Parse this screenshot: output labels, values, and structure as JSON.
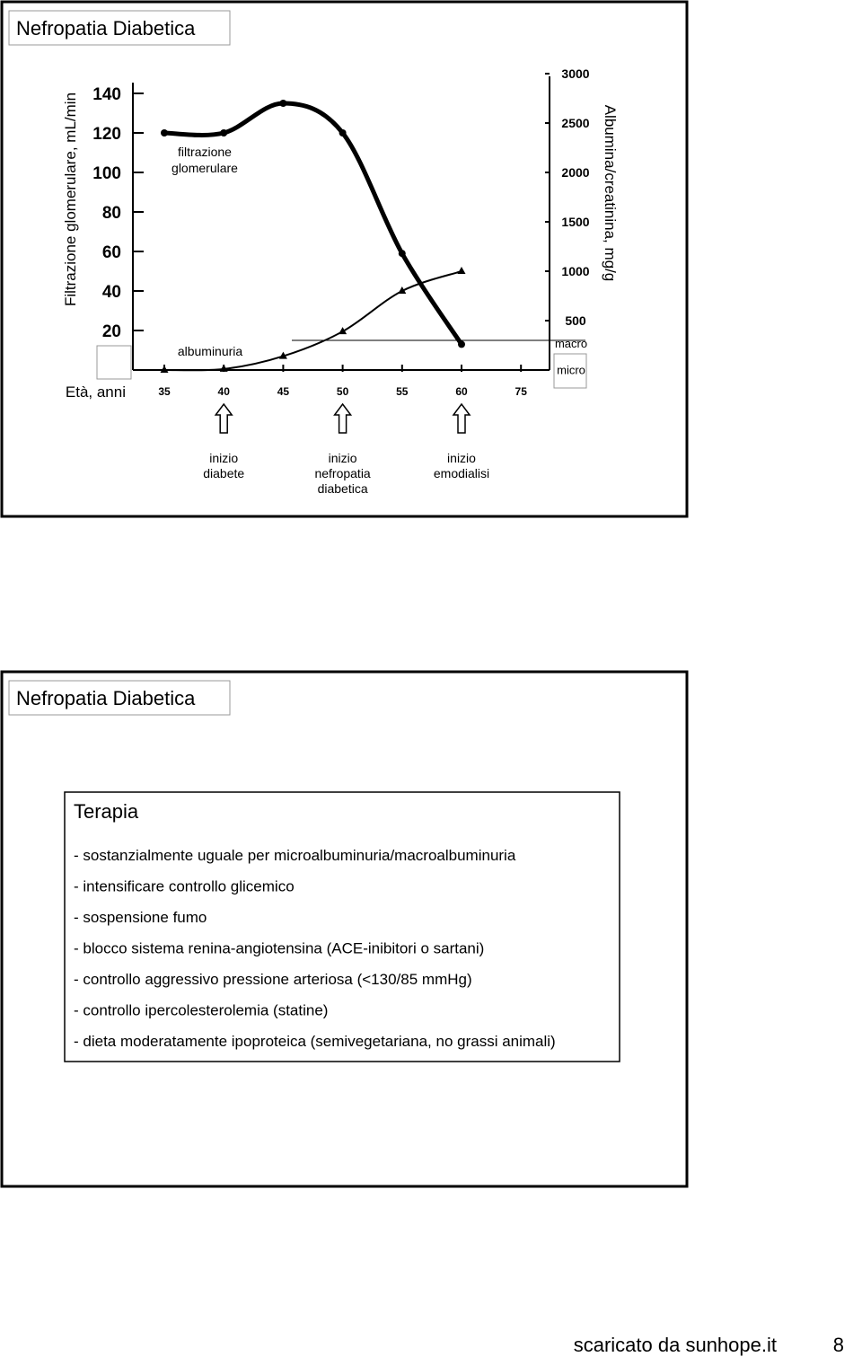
{
  "slides": [
    {
      "title": "Nefropatia Diabetica",
      "chart": {
        "type": "line",
        "categories": [
          "35",
          "40",
          "45",
          "50",
          "55",
          "60",
          "75"
        ],
        "x_label": "Età, anni",
        "y_label": "Filtrazione glomerulare, mL/min",
        "y2_label": "Albumina/creatinina, mg/g",
        "ylim": [
          0,
          150
        ],
        "yticks": [
          20,
          40,
          60,
          80,
          100,
          120,
          140
        ],
        "y2lim": [
          0,
          3000
        ],
        "y2ticks": [
          500,
          1000,
          1500,
          2000,
          2500,
          3000
        ],
        "series": [
          {
            "name": "filtrazione glomerulare",
            "color": "#000000",
            "marker": "circle",
            "values": [
              120,
              120,
              135,
              120,
              59,
              13,
              null
            ]
          },
          {
            "name": "albuminuria",
            "axis": "y2",
            "color": "#000000",
            "marker": "triangle",
            "values": [
              0,
              10,
              140,
              390,
              800,
              1000,
              null
            ]
          }
        ],
        "thresholds": [
          {
            "label": "macro",
            "value": 300
          },
          {
            "label": "micro",
            "value": 30
          }
        ],
        "events": [
          {
            "label": [
              "inizio",
              "diabete"
            ]
          },
          {
            "label": [
              "inizio",
              "nefropatia",
              "diabetica"
            ]
          },
          {
            "label": [
              "inizio",
              "emodialisi"
            ]
          }
        ]
      }
    },
    {
      "title": "Nefropatia Diabetica",
      "heading": "Terapia",
      "items": [
        "- sostanzialmente uguale per microalbuminuria/macroalbuminuria",
        "- intensificare controllo glicemico",
        "- sospensione fumo",
        "- blocco sistema renina-angiotensina (ACE-inibitori o sartani)",
        "- controllo aggressivo pressione arteriosa (<130/85 mmHg)",
        "- controllo ipercolesterolemia (statine)",
        "- dieta moderatamente ipoproteica (semivegetariana, no grassi animali)"
      ]
    }
  ],
  "footer": {
    "source": "scaricato da sunhope.it",
    "page": "8"
  }
}
